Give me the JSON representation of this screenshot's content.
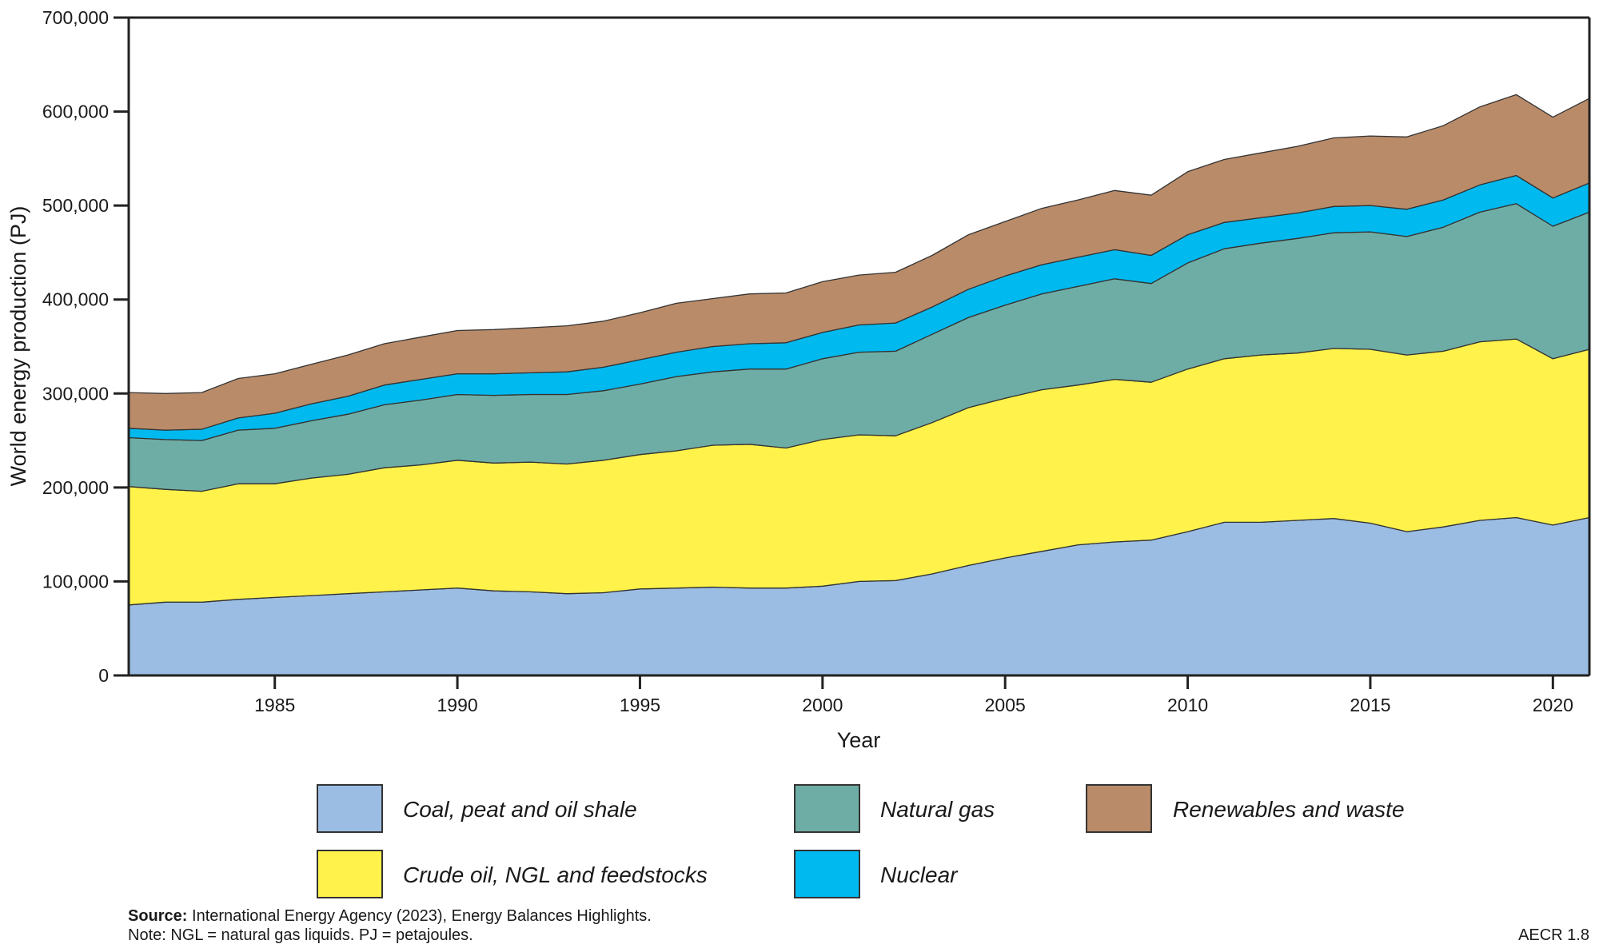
{
  "chart_data": {
    "type": "area",
    "stacked": true,
    "xlabel": "Year",
    "ylabel": "World energy production (PJ)",
    "xlim": [
      1981,
      2021
    ],
    "ylim": [
      0,
      700000
    ],
    "x_ticks": [
      1985,
      1990,
      1995,
      2000,
      2005,
      2010,
      2015,
      2020
    ],
    "y_ticks": [
      "0",
      "100,000",
      "200,000",
      "300,000",
      "400,000",
      "500,000",
      "600,000",
      "700,000"
    ],
    "y_tick_values": [
      0,
      100000,
      200000,
      300000,
      400000,
      500000,
      600000,
      700000
    ],
    "grid": false,
    "legend_placement": "bottom",
    "x": [
      1981,
      1982,
      1983,
      1984,
      1985,
      1986,
      1987,
      1988,
      1989,
      1990,
      1991,
      1992,
      1993,
      1994,
      1995,
      1996,
      1997,
      1998,
      1999,
      2000,
      2001,
      2002,
      2003,
      2004,
      2005,
      2006,
      2007,
      2008,
      2009,
      2010,
      2011,
      2012,
      2013,
      2014,
      2015,
      2016,
      2017,
      2018,
      2019,
      2020,
      2021
    ],
    "series": [
      {
        "name": "Coal, peat and oil shale",
        "color": "#9bbde3",
        "values": [
          75000,
          78000,
          78000,
          81000,
          83000,
          85000,
          87000,
          89000,
          91000,
          93000,
          90000,
          89000,
          87000,
          88000,
          92000,
          93000,
          94000,
          93000,
          93000,
          95000,
          100000,
          101000,
          108000,
          117000,
          125000,
          132000,
          139000,
          142000,
          144000,
          153000,
          163000,
          163000,
          165000,
          167000,
          162000,
          153000,
          158000,
          165000,
          168000,
          160000,
          168000
        ]
      },
      {
        "name": "Crude oil, NGL and feedstocks",
        "color": "#fff24a",
        "values": [
          126000,
          120000,
          118000,
          123000,
          121000,
          125000,
          127000,
          132000,
          133000,
          136000,
          136000,
          138000,
          138000,
          141000,
          143000,
          146000,
          151000,
          153000,
          149000,
          156000,
          156000,
          154000,
          161000,
          168000,
          170000,
          172000,
          170000,
          173000,
          168000,
          173000,
          174000,
          178000,
          178000,
          181000,
          185000,
          188000,
          187000,
          190000,
          190000,
          177000,
          179000
        ]
      },
      {
        "name": "Natural gas",
        "color": "#6eada5",
        "values": [
          52000,
          53000,
          54000,
          57000,
          59000,
          61000,
          64000,
          67000,
          69000,
          70000,
          72000,
          72000,
          74000,
          74000,
          75000,
          79000,
          78000,
          80000,
          84000,
          86000,
          88000,
          90000,
          94000,
          96000,
          99000,
          102000,
          105000,
          107000,
          105000,
          113000,
          117000,
          119000,
          122000,
          123000,
          125000,
          126000,
          132000,
          138000,
          144000,
          141000,
          146000
        ]
      },
      {
        "name": "Nuclear",
        "color": "#00b9ef",
        "values": [
          10000,
          10000,
          12000,
          13000,
          16000,
          18000,
          19000,
          21000,
          22000,
          22000,
          23000,
          23000,
          24000,
          25000,
          26000,
          26000,
          27000,
          27000,
          28000,
          28000,
          29000,
          30000,
          29000,
          30000,
          31000,
          31000,
          31000,
          31000,
          30000,
          30000,
          28000,
          27000,
          27000,
          28000,
          28000,
          29000,
          29000,
          29000,
          30000,
          30000,
          31000
        ]
      },
      {
        "name": "Renewables and waste",
        "color": "#b98b69",
        "values": [
          38000,
          39000,
          39000,
          42000,
          42000,
          42000,
          44000,
          44000,
          45000,
          46000,
          47000,
          48000,
          49000,
          49000,
          50000,
          52000,
          51000,
          53000,
          53000,
          54000,
          53000,
          54000,
          55000,
          58000,
          58000,
          60000,
          61000,
          63000,
          64000,
          67000,
          67000,
          69000,
          71000,
          73000,
          74000,
          77000,
          79000,
          83000,
          86000,
          86000,
          90000
        ]
      }
    ],
    "legend_order": [
      0,
      2,
      4,
      1,
      3
    ]
  },
  "footer": {
    "source_label": "Source:",
    "source_text": " International Energy Agency (2023), Energy Balances Highlights.",
    "note": "Note: NGL = natural gas liquids. PJ = petajoules.",
    "figure_id": "AECR 1.8"
  }
}
